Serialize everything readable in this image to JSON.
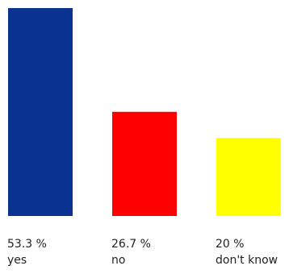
{
  "chart_data": {
    "type": "bar",
    "categories": [
      "yes",
      "no",
      "don't know"
    ],
    "values": [
      53.3,
      26.7,
      20
    ],
    "value_labels": [
      "53.3 %",
      "26.7 %",
      "20 %"
    ],
    "colors": [
      "#0a3291",
      "#ff0000",
      "#ffff00"
    ],
    "title": "",
    "xlabel": "",
    "ylabel": "",
    "ylim": [
      0,
      53.3
    ],
    "grid": false,
    "legend": "none"
  }
}
